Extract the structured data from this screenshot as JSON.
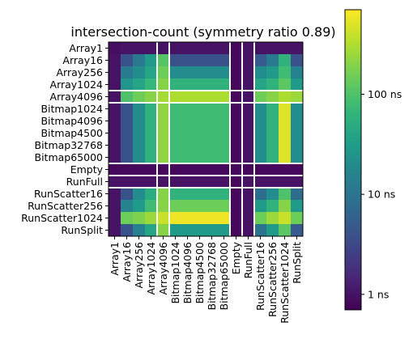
{
  "chart_data": {
    "type": "heatmap",
    "title": "intersection-count (symmetry ratio 0.89)",
    "xlabel": "",
    "ylabel": "",
    "rows": [
      "Array1",
      "Array16",
      "Array256",
      "Array1024",
      "Array4096",
      "Bitmap1024",
      "Bitmap4096",
      "Bitmap4500",
      "Bitmap32768",
      "Bitmap65000",
      "Empty",
      "RunFull",
      "RunScatter16",
      "RunScatter256",
      "RunScatter1024",
      "RunSplit"
    ],
    "columns": [
      "Array1",
      "Array16",
      "Array256",
      "Array1024",
      "Array4096",
      "Bitmap1024",
      "Bitmap4096",
      "Bitmap4500",
      "Bitmap32768",
      "Bitmap65000",
      "Empty",
      "RunFull",
      "RunScatter16",
      "RunScatter256",
      "RunScatter1024",
      "RunSplit"
    ],
    "unit": "ns",
    "color_scale": "viridis",
    "log_scale": true,
    "vmin": 0.7,
    "vmax": 700,
    "colorbar_ticks": [
      {
        "value": 1,
        "label": "1 ns"
      },
      {
        "value": 10,
        "label": "10 ns"
      },
      {
        "value": 100,
        "label": "100 ns"
      }
    ],
    "values": [
      [
        0.9,
        1,
        1,
        1,
        1,
        1,
        1,
        1,
        1,
        1,
        0.8,
        1,
        1,
        1,
        1,
        1
      ],
      [
        1,
        4,
        12,
        30,
        110,
        4,
        4,
        4,
        4,
        4,
        0.8,
        1,
        5,
        12,
        60,
        4
      ],
      [
        1,
        12,
        20,
        40,
        150,
        20,
        20,
        20,
        20,
        20,
        0.8,
        1,
        20,
        30,
        80,
        15
      ],
      [
        1,
        25,
        40,
        70,
        200,
        60,
        60,
        60,
        60,
        60,
        0.8,
        1,
        40,
        60,
        120,
        30
      ],
      [
        1,
        100,
        150,
        200,
        280,
        300,
        300,
        300,
        300,
        300,
        0.8,
        1,
        150,
        200,
        300,
        250
      ],
      [
        1,
        4,
        20,
        60,
        220,
        80,
        80,
        80,
        80,
        80,
        0.8,
        1,
        20,
        60,
        500,
        20
      ],
      [
        1,
        4,
        20,
        60,
        220,
        80,
        80,
        80,
        80,
        80,
        0.8,
        1,
        20,
        60,
        500,
        20
      ],
      [
        1,
        4,
        20,
        60,
        220,
        80,
        80,
        80,
        80,
        80,
        0.8,
        1,
        20,
        60,
        500,
        20
      ],
      [
        1,
        4,
        20,
        60,
        220,
        80,
        80,
        80,
        80,
        80,
        0.8,
        1,
        20,
        60,
        500,
        20
      ],
      [
        1,
        4,
        20,
        60,
        220,
        80,
        80,
        80,
        80,
        80,
        0.8,
        1,
        20,
        60,
        500,
        20
      ],
      [
        0.8,
        0.8,
        0.8,
        0.8,
        0.8,
        0.8,
        0.8,
        0.8,
        0.8,
        0.8,
        0.8,
        0.8,
        0.8,
        0.8,
        0.8,
        0.8
      ],
      [
        1,
        1,
        1,
        1,
        1,
        1,
        1,
        1,
        1,
        1,
        0.8,
        1,
        1,
        1,
        1,
        1
      ],
      [
        1,
        4,
        20,
        50,
        200,
        60,
        60,
        60,
        60,
        60,
        0.8,
        1,
        8,
        20,
        100,
        8
      ],
      [
        1,
        15,
        30,
        80,
        200,
        150,
        150,
        150,
        150,
        150,
        0.8,
        1,
        30,
        60,
        200,
        30
      ],
      [
        1,
        150,
        180,
        250,
        400,
        600,
        600,
        600,
        600,
        600,
        0.8,
        1,
        150,
        250,
        400,
        150
      ],
      [
        1,
        4,
        15,
        40,
        200,
        30,
        30,
        30,
        30,
        30,
        0.8,
        1,
        10,
        30,
        120,
        5
      ]
    ]
  }
}
